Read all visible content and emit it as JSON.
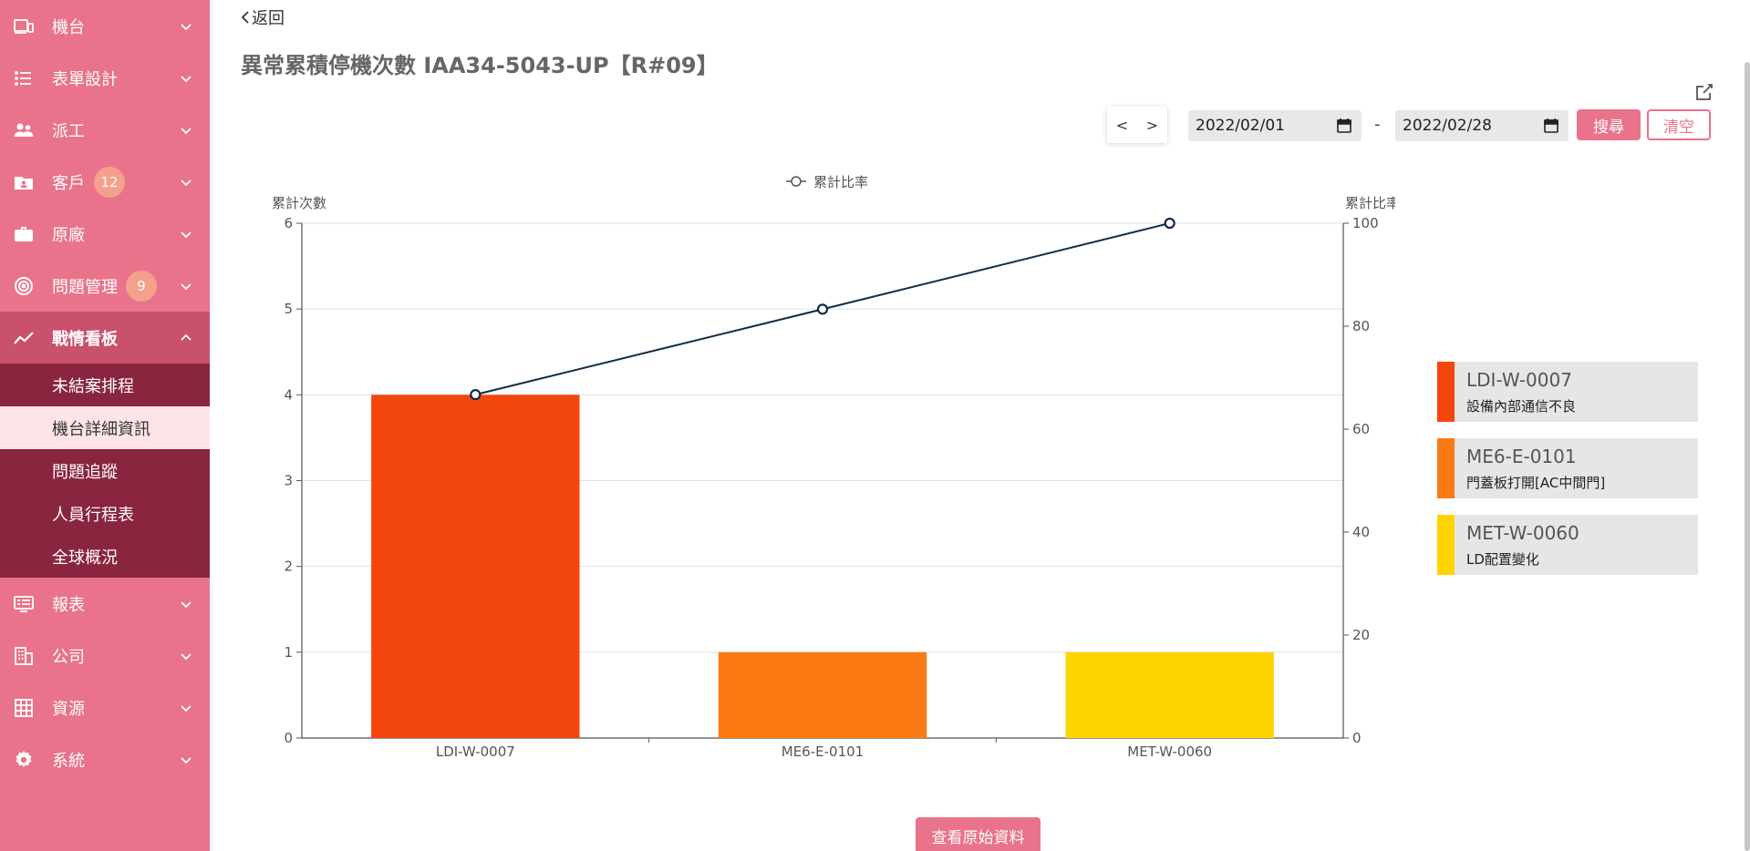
{
  "sidebar": {
    "items": [
      {
        "label": "機台",
        "icon": "devices-icon"
      },
      {
        "label": "表單設計",
        "icon": "list-icon"
      },
      {
        "label": "派工",
        "icon": "people-icon"
      },
      {
        "label": "客戶",
        "icon": "contact-card-icon",
        "badge": "12"
      },
      {
        "label": "原廠",
        "icon": "briefcase-icon"
      },
      {
        "label": "問題管理",
        "icon": "target-icon",
        "badge": "9"
      },
      {
        "label": "戰情看板",
        "icon": "trend-line-icon"
      },
      {
        "label": "報表",
        "icon": "monitor-icon"
      },
      {
        "label": "公司",
        "icon": "building-icon"
      },
      {
        "label": "資源",
        "icon": "grid-icon"
      },
      {
        "label": "系統",
        "icon": "gear-icon"
      }
    ],
    "submenu": [
      {
        "label": "未結案排程"
      },
      {
        "label": "機台詳細資訊"
      },
      {
        "label": "問題追蹤"
      },
      {
        "label": "人員行程表"
      },
      {
        "label": "全球概況"
      }
    ]
  },
  "header": {
    "back_label": "返回",
    "title": "異常累積停機次數 IAA34-5043-UP【R#09】"
  },
  "toolbar": {
    "prev_label": "<",
    "next_label": ">",
    "start_date": "2022/02/01",
    "end_date": "2022/02/28",
    "range_sep": "-",
    "search_label": "搜尋",
    "clear_label": "清空"
  },
  "chart_data": {
    "type": "bar",
    "categories": [
      "LDI-W-0007",
      "ME6-E-0101",
      "MET-W-0060"
    ],
    "values": [
      4,
      1,
      1
    ],
    "bar_colors": [
      "#f3460d",
      "#fb7a14",
      "#fed400"
    ],
    "line_series": {
      "name": "累計比率",
      "values": [
        66.7,
        83.3,
        100
      ],
      "color": "#0f2a4a"
    },
    "ylabel_left": "累計次數",
    "ylabel_right": "累計比率",
    "ylim_left": [
      0,
      6
    ],
    "ylim_right": [
      0,
      100
    ],
    "yticks_left": [
      "0",
      "1",
      "2",
      "3",
      "4",
      "5",
      "6"
    ],
    "yticks_right": [
      "0",
      "20",
      "40",
      "60",
      "80",
      "100"
    ],
    "legend_position": "top-center",
    "grid": true
  },
  "legend_cards": [
    {
      "code": "LDI-W-0007",
      "desc": "設備內部通信不良",
      "color": "#f3460d"
    },
    {
      "code": "ME6-E-0101",
      "desc": "門蓋板打開[AC中間門]",
      "color": "#fb7a14"
    },
    {
      "code": "MET-W-0060",
      "desc": "LD配置變化",
      "color": "#fed400"
    }
  ],
  "footer": {
    "raw_data_label": "查看原始資料"
  },
  "colors": {
    "accent": "#e8738a",
    "sidebar_dark": "#8a2540",
    "sidebar_open": "#c9516b",
    "active_sub": "#fde4e7"
  }
}
